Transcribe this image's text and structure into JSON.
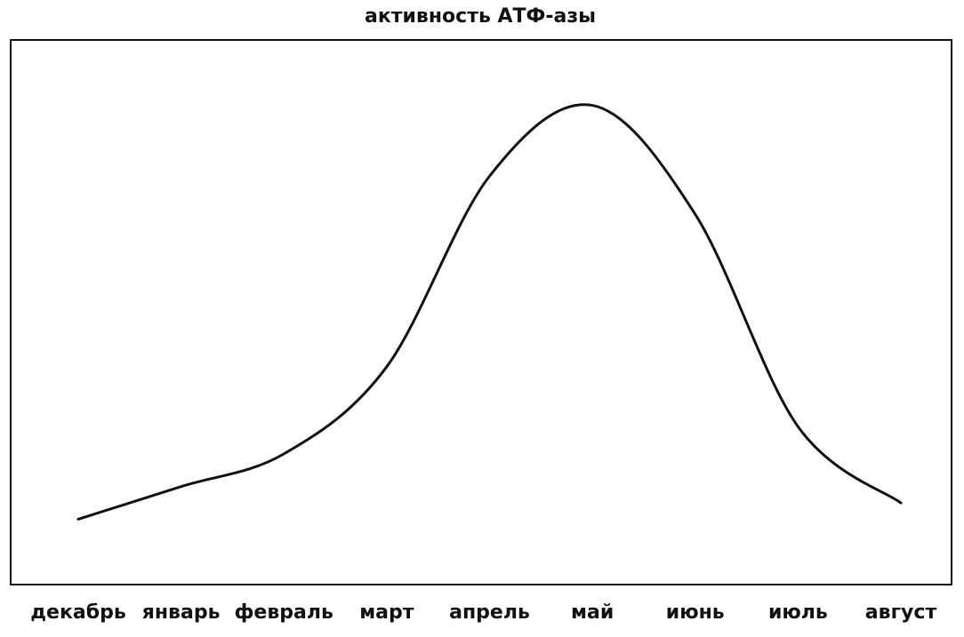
{
  "chart_data": {
    "type": "line",
    "title": "активность АТФ-азы",
    "categories": [
      "декабрь",
      "январь",
      "февраль",
      "март",
      "апрель",
      "май",
      "июнь",
      "июль",
      "август"
    ],
    "values": [
      12,
      18,
      24,
      40,
      75,
      88,
      68,
      29,
      15
    ],
    "color": "#111111",
    "ylim": [
      0,
      100
    ]
  }
}
